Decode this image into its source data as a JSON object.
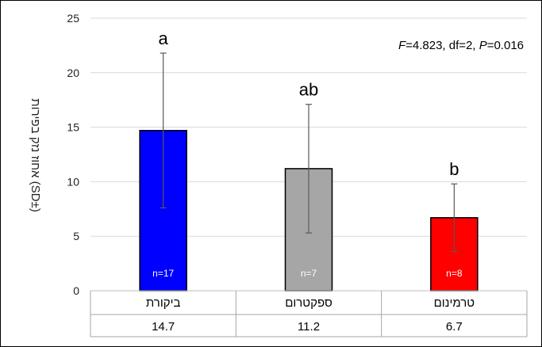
{
  "chart_data": {
    "type": "bar",
    "categories": [
      "ביקורת",
      "ספקטרום",
      "טרמינום"
    ],
    "values": [
      14.7,
      11.2,
      6.7
    ],
    "value_labels": [
      "14.7",
      "11.2",
      "6.7"
    ],
    "sd": [
      7.1,
      5.9,
      3.1
    ],
    "n_labels": [
      "n=17",
      "n=7",
      "n=8"
    ],
    "group_letters": [
      "a",
      "ab",
      "b"
    ],
    "colors": [
      "#0000ff",
      "#a6a6a6",
      "#ff0000"
    ],
    "ylabel": "אחוז נזק בפירות (SD±)",
    "ylim": [
      0,
      25
    ],
    "yticks": [
      0,
      5,
      10,
      15,
      20,
      25
    ],
    "grid": true,
    "stat": {
      "F_symbol": "F",
      "F_value": "=4.823, df=2, ",
      "P_symbol": "P",
      "P_value": "=0.016"
    }
  }
}
